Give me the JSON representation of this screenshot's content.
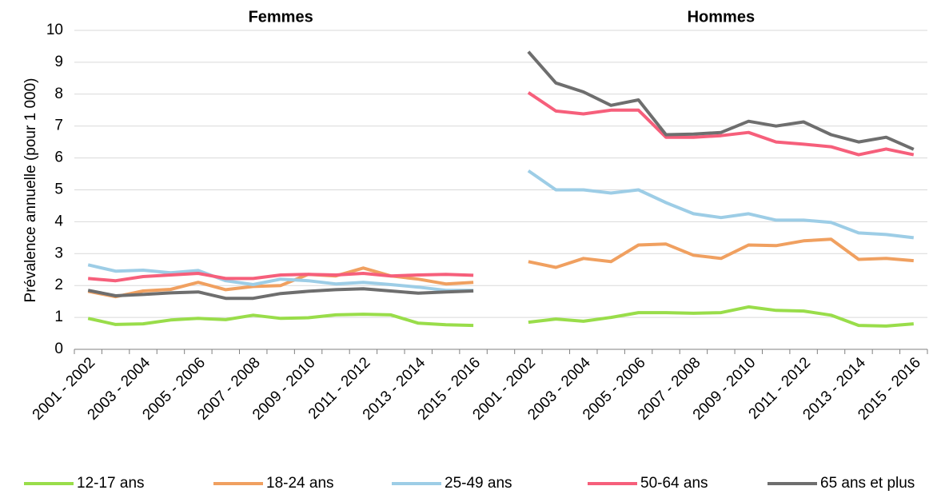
{
  "chart_data": {
    "type": "line",
    "panel_titles": [
      "Femmes",
      "Hommes"
    ],
    "y_label": "Prévalence annuelle (pour 1 000)",
    "categories": [
      "2001 - 2002",
      null,
      "2003 - 2004",
      null,
      "2005 - 2006",
      null,
      "2007 - 2008",
      null,
      "2009 - 2010",
      null,
      "2011 - 2012",
      null,
      "2013 - 2014",
      null,
      "2015 - 2016",
      null,
      "2001 - 2002",
      null,
      "2003 - 2004",
      null,
      "2005 - 2006",
      null,
      "2007 - 2008",
      null,
      "2009 - 2010",
      null,
      "2011 - 2012",
      null,
      "2013 - 2014",
      null,
      "2015 - 2016"
    ],
    "ylim": [
      0,
      10
    ],
    "yticks": [
      0,
      1,
      2,
      3,
      4,
      5,
      6,
      7,
      8,
      9,
      10
    ],
    "grid": true,
    "legend": "bottom",
    "series": [
      {
        "name": "12-17 ans",
        "color": "#99dd4a",
        "values": [
          0.97,
          0.78,
          0.8,
          0.92,
          0.97,
          0.93,
          1.07,
          0.97,
          0.99,
          1.08,
          1.1,
          1.08,
          0.82,
          0.77,
          0.75,
          null,
          0.85,
          0.95,
          0.88,
          1.0,
          1.15,
          1.15,
          1.13,
          1.15,
          1.33,
          1.22,
          1.2,
          1.07,
          0.75,
          0.73,
          0.8
        ]
      },
      {
        "name": "18-24 ans",
        "color": "#f0a060",
        "values": [
          1.82,
          1.65,
          1.83,
          1.88,
          2.1,
          1.87,
          1.97,
          2.0,
          2.35,
          2.3,
          2.55,
          2.3,
          2.2,
          2.05,
          2.1,
          null,
          2.75,
          2.57,
          2.85,
          2.75,
          3.27,
          3.3,
          2.95,
          2.85,
          3.27,
          3.25,
          3.4,
          3.45,
          2.82,
          2.85,
          2.78
        ]
      },
      {
        "name": "25-49 ans",
        "color": "#9dcde6",
        "values": [
          2.65,
          2.45,
          2.48,
          2.4,
          2.47,
          2.15,
          2.03,
          2.2,
          2.15,
          2.05,
          2.1,
          2.03,
          1.95,
          1.85,
          1.85,
          null,
          5.6,
          5.0,
          5.0,
          4.9,
          5.0,
          4.6,
          4.25,
          4.13,
          4.25,
          4.05,
          4.05,
          3.98,
          3.65,
          3.6,
          3.5
        ]
      },
      {
        "name": "50-64 ans",
        "color": "#f65f7b",
        "values": [
          2.22,
          2.15,
          2.28,
          2.33,
          2.38,
          2.22,
          2.22,
          2.33,
          2.35,
          2.33,
          2.38,
          2.3,
          2.33,
          2.35,
          2.32,
          null,
          8.05,
          7.47,
          7.38,
          7.5,
          7.5,
          6.65,
          6.65,
          6.7,
          6.8,
          6.5,
          6.43,
          6.35,
          6.1,
          6.28,
          6.1
        ]
      },
      {
        "name": "65 ans et plus",
        "color": "#6e6e6e",
        "values": [
          1.85,
          1.68,
          1.72,
          1.77,
          1.8,
          1.6,
          1.6,
          1.75,
          1.82,
          1.87,
          1.9,
          1.83,
          1.76,
          1.8,
          1.83,
          null,
          9.33,
          8.35,
          8.07,
          7.65,
          7.82,
          6.73,
          6.75,
          6.8,
          7.15,
          7.0,
          7.13,
          6.73,
          6.5,
          6.65,
          6.27
        ]
      }
    ]
  }
}
